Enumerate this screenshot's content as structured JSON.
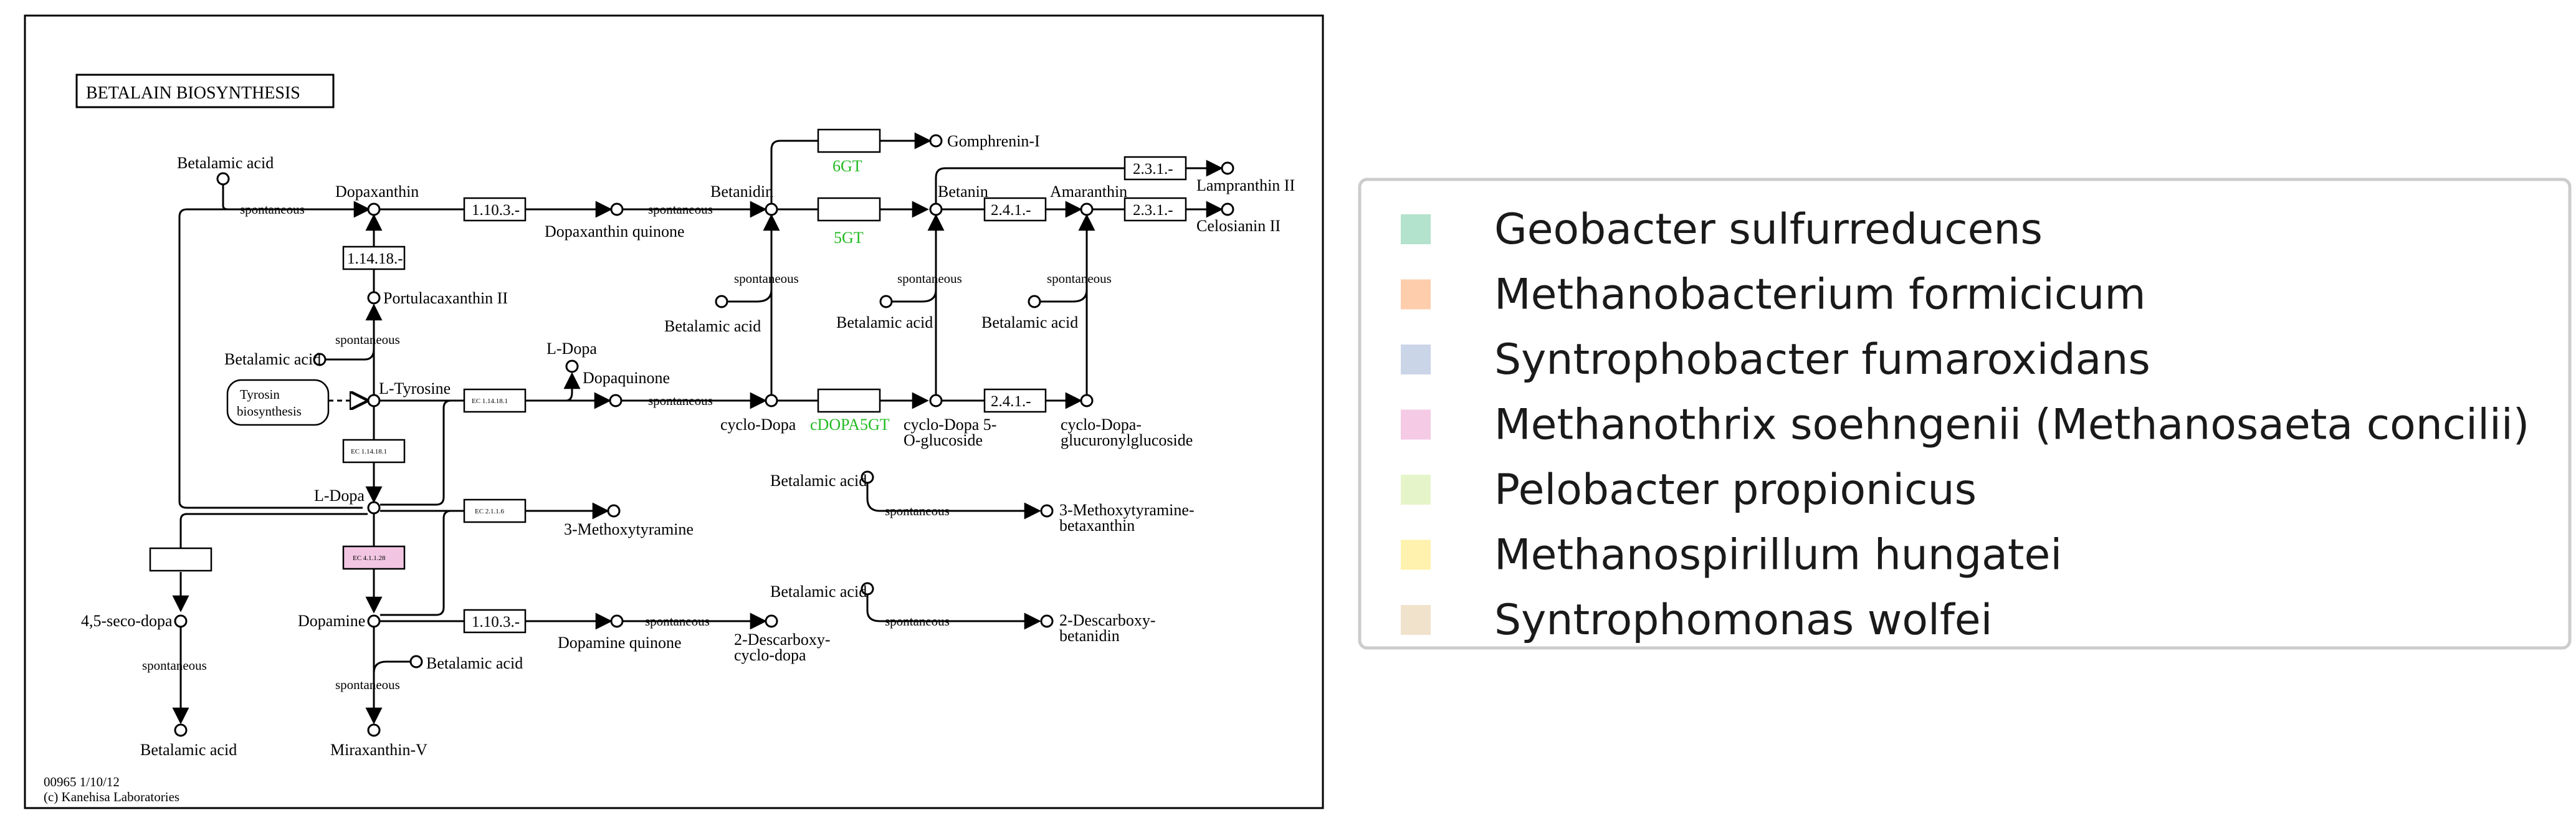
{
  "map": {
    "title": "BETALAIN BIOSYNTHESIS",
    "footer_id": "00965 1/10/12",
    "footer_copyright": "(c) Kanehisa Laboratories",
    "tyrosin_box": [
      "Tyrosin",
      "biosynthesis"
    ],
    "compounds": {
      "betalamic_top": "Betalamic acid",
      "dopaxanthin": "Dopaxanthin",
      "dopaxanthin_quinone": "Dopaxanthin quinone",
      "portulacaxanthin": "Portulacaxanthin II",
      "betalamic_left": "Betalamic acid",
      "l_tyrosine": "L-Tyrosine",
      "l_dopa_center": "L-Dopa",
      "l_dopa_top": "L-Dopa",
      "dopaquinone": "Dopaquinone",
      "seco_dopa": "4,5-seco-dopa",
      "betalamic_bottom_left": "Betalamic acid",
      "dopamine": "Dopamine",
      "betalamic_dopamine": "Betalamic acid",
      "miraxanthin": "Miraxanthin-V",
      "methoxytyramine": "3-Methoxytyramine",
      "betalamic_meth": "Betalamic acid",
      "methoxy_betaxanthin": [
        "3-Methoxytyramine-",
        "betaxanthin"
      ],
      "dopamine_quinone": "Dopamine quinone",
      "descarboxy_cyclo": [
        "2-Descarboxy-",
        "cyclo-dopa"
      ],
      "betalamic_desc": "Betalamic acid",
      "descarboxy_betanidin": [
        "2-Descarboxy-",
        "betanidin"
      ],
      "betanidin": "Betanidin",
      "gomphrenin": "Gomphrenin-I",
      "betanin": "Betanin",
      "amaranthin": "Amaranthin",
      "lampranthin": "Lampranthin II",
      "celosianin": "Celosianin II",
      "betalamic_a": "Betalamic acid",
      "betalamic_b": "Betalamic acid",
      "betalamic_c": "Betalamic acid",
      "cyclo_dopa": "cyclo-Dopa",
      "cyclo_dopa_glucoside": [
        "cyclo-Dopa 5-",
        "O-glucoside"
      ],
      "cyclo_dopa_glucuronyl": [
        "cyclo-Dopa-",
        "glucuronylglucoside"
      ]
    },
    "spontaneous": "spontaneous",
    "enzymes": {
      "e1": "1.10.3.-",
      "e2": "1.14.18.-",
      "e3": "EC 1.14.18.1",
      "e4": "EC 1.14.18.1",
      "e5": "EC 2.1.1.6",
      "e6": "EC 4.1.1.28",
      "e7": "1.10.3.-",
      "e8": "2.4.1.-",
      "e9": "2.3.1.-",
      "e10": "2.3.1.-",
      "e11": "2.4.1.-",
      "g1": "6GT",
      "g2": "5GT",
      "g3": "cDOPA5GT"
    },
    "highlight_color": "#f2c6e2",
    "green_color": "#22bb22"
  },
  "legend": {
    "items": [
      {
        "label": "Geobacter sulfurreducens",
        "color": "#b3e2cd"
      },
      {
        "label": "Methanobacterium formicicum",
        "color": "#fdcdac"
      },
      {
        "label": "Syntrophobacter fumaroxidans",
        "color": "#cbd5e8"
      },
      {
        "label": "Methanothrix soehngenii (Methanosaeta concilii)",
        "color": "#f4cae4"
      },
      {
        "label": "Pelobacter propionicus",
        "color": "#e6f5c9"
      },
      {
        "label": "Methanospirillum hungatei",
        "color": "#fff2ae"
      },
      {
        "label": "Syntrophomonas wolfei",
        "color": "#f1e2cc"
      }
    ]
  }
}
